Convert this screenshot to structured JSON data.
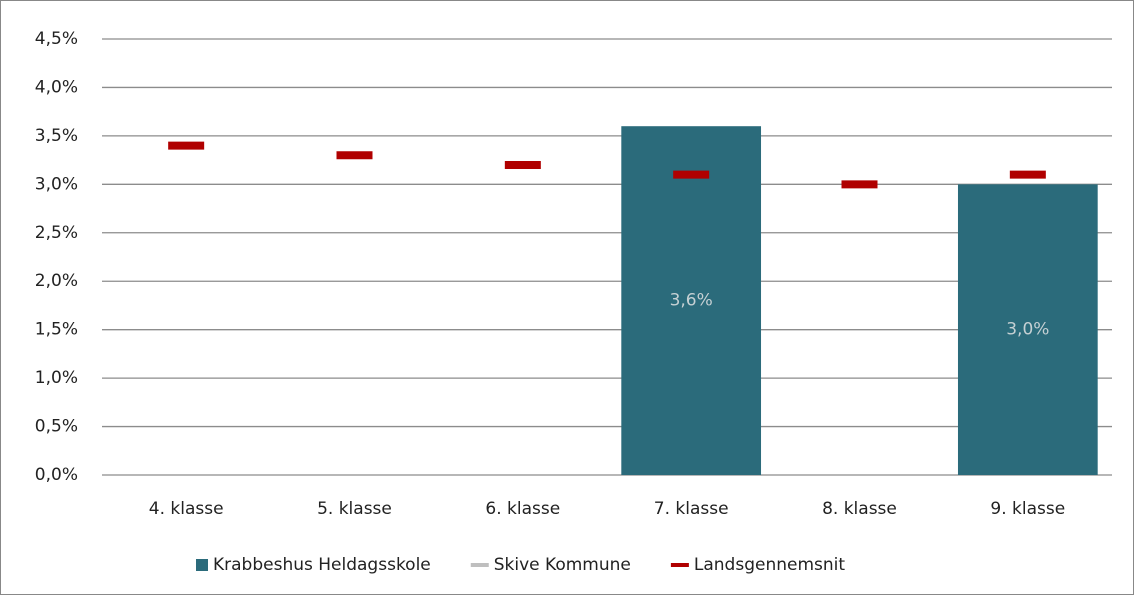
{
  "chart_data": {
    "type": "bar",
    "categories": [
      "4. klasse",
      "5. klasse",
      "6. klasse",
      "7. klasse",
      "8. klasse",
      "9. klasse"
    ],
    "series": [
      {
        "name": "Krabbeshus Heldagsskole",
        "color": "#2b6b7b",
        "mark": "bar",
        "values": [
          null,
          null,
          null,
          3.6,
          null,
          3.0
        ],
        "value_labels": [
          null,
          null,
          null,
          "3,6%",
          null,
          "3,0%"
        ]
      },
      {
        "name": "Skive Kommune",
        "color": "#bfbfbf",
        "mark": "dash",
        "values": [
          null,
          null,
          null,
          null,
          null,
          null
        ]
      },
      {
        "name": "Landsgennemsnit",
        "color": "#b00000",
        "mark": "dash",
        "values": [
          3.4,
          3.3,
          3.2,
          3.1,
          3.0,
          3.1
        ]
      }
    ],
    "ylim": [
      0,
      4.5
    ],
    "yticks": [
      {
        "value": 0,
        "label": "0,0%"
      },
      {
        "value": 0.5,
        "label": "0,5%"
      },
      {
        "value": 1,
        "label": "1,0%"
      },
      {
        "value": 1.5,
        "label": "1,5%"
      },
      {
        "value": 2,
        "label": "2,0%"
      },
      {
        "value": 2.5,
        "label": "2,5%"
      },
      {
        "value": 3,
        "label": "3,0%"
      },
      {
        "value": 3.5,
        "label": "3,5%"
      },
      {
        "value": 4,
        "label": "4,0%"
      },
      {
        "value": 4.5,
        "label": "4,5%"
      }
    ],
    "grid": true,
    "legend": "bottom"
  }
}
